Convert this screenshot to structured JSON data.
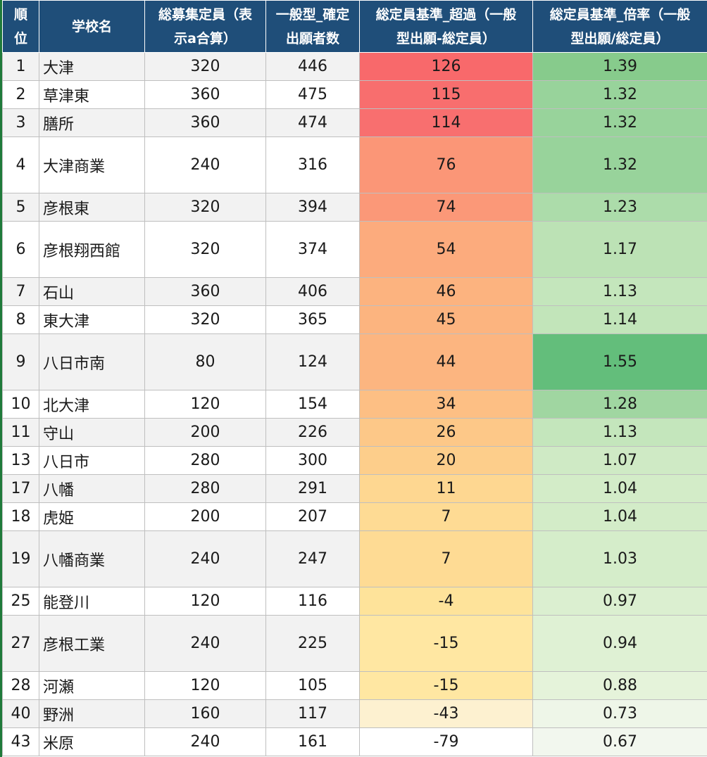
{
  "header": {
    "rank": [
      "順",
      "位"
    ],
    "school": "学校名",
    "capacity": [
      "総募集定員（表",
      "示a合算）"
    ],
    "applicants": [
      "一般型_確定",
      "出願者数"
    ],
    "excess": [
      "総定員基準_超過（一般",
      "型出願-総定員）"
    ],
    "ratio": [
      "総定員基準_倍率（一般",
      "型出願/総定員）"
    ]
  },
  "colors": {
    "header_bg": "#1f4e79",
    "excess_high": "#f8696b",
    "excess_mid": "#fcb581",
    "excess_low": "#ffeb9c",
    "excess_min": "#ffffff",
    "ratio_high": "#63be7b",
    "ratio_low": "#f2f7ee"
  },
  "rows": [
    {
      "rank": "1",
      "school": "大津",
      "capacity": "320",
      "applicants": "446",
      "excess": "126",
      "ratio": "1.39",
      "tall": false,
      "excess_bg": "#f8696b",
      "ratio_bg": "#87cb8c"
    },
    {
      "rank": "2",
      "school": "草津東",
      "capacity": "360",
      "applicants": "475",
      "excess": "115",
      "ratio": "1.32",
      "tall": false,
      "excess_bg": "#f86e6e",
      "ratio_bg": "#98d39b"
    },
    {
      "rank": "3",
      "school": "膳所",
      "capacity": "360",
      "applicants": "474",
      "excess": "114",
      "ratio": "1.32",
      "tall": false,
      "excess_bg": "#f86f6f",
      "ratio_bg": "#98d39b"
    },
    {
      "rank": "4",
      "school": "大津商業",
      "capacity": "240",
      "applicants": "316",
      "excess": "76",
      "ratio": "1.32",
      "tall": true,
      "excess_bg": "#fb9677",
      "ratio_bg": "#98d39b"
    },
    {
      "rank": "5",
      "school": "彦根東",
      "capacity": "320",
      "applicants": "394",
      "excess": "74",
      "ratio": "1.23",
      "tall": false,
      "excess_bg": "#fb9878",
      "ratio_bg": "#acdcaa"
    },
    {
      "rank": "6",
      "school": "彦根翔西館",
      "capacity": "320",
      "applicants": "374",
      "excess": "54",
      "ratio": "1.17",
      "tall": true,
      "excess_bg": "#fcab7d",
      "ratio_bg": "#bce2b5"
    },
    {
      "rank": "7",
      "school": "石山",
      "capacity": "360",
      "applicants": "406",
      "excess": "46",
      "ratio": "1.13",
      "tall": false,
      "excess_bg": "#fcb37f",
      "ratio_bg": "#c4e6bc"
    },
    {
      "rank": "8",
      "school": "東大津",
      "capacity": "320",
      "applicants": "365",
      "excess": "45",
      "ratio": "1.14",
      "tall": false,
      "excess_bg": "#fcb47f",
      "ratio_bg": "#c2e5ba"
    },
    {
      "rank": "9",
      "school": "八日市南",
      "capacity": "80",
      "applicants": "124",
      "excess": "44",
      "ratio": "1.55",
      "tall": true,
      "excess_bg": "#fcb580",
      "ratio_bg": "#63be7b"
    },
    {
      "rank": "10",
      "school": "北大津",
      "capacity": "120",
      "applicants": "154",
      "excess": "34",
      "ratio": "1.28",
      "tall": false,
      "excess_bg": "#fdbf84",
      "ratio_bg": "#a0d6a1"
    },
    {
      "rank": "11",
      "school": "守山",
      "capacity": "200",
      "applicants": "226",
      "excess": "26",
      "ratio": "1.13",
      "tall": false,
      "excess_bg": "#fdc888",
      "ratio_bg": "#c4e6bc"
    },
    {
      "rank": "13",
      "school": "八日市",
      "capacity": "280",
      "applicants": "300",
      "excess": "20",
      "ratio": "1.07",
      "tall": false,
      "excess_bg": "#fdce8b",
      "ratio_bg": "#cfeac5"
    },
    {
      "rank": "17",
      "school": "八幡",
      "capacity": "280",
      "applicants": "291",
      "excess": "11",
      "ratio": "1.04",
      "tall": false,
      "excess_bg": "#fed791",
      "ratio_bg": "#d3ecc8"
    },
    {
      "rank": "18",
      "school": "虎姫",
      "capacity": "200",
      "applicants": "207",
      "excess": "7",
      "ratio": "1.04",
      "tall": false,
      "excess_bg": "#fedb94",
      "ratio_bg": "#d3ecc8"
    },
    {
      "rank": "19",
      "school": "八幡商業",
      "capacity": "240",
      "applicants": "247",
      "excess": "7",
      "ratio": "1.03",
      "tall": true,
      "excess_bg": "#fedb94",
      "ratio_bg": "#d5edca"
    },
    {
      "rank": "25",
      "school": "能登川",
      "capacity": "120",
      "applicants": "116",
      "excess": "-4",
      "ratio": "0.97",
      "tall": false,
      "excess_bg": "#fee39a",
      "ratio_bg": "#dbefd0"
    },
    {
      "rank": "27",
      "school": "彦根工業",
      "capacity": "240",
      "applicants": "225",
      "excess": "-15",
      "ratio": "0.94",
      "tall": true,
      "excess_bg": "#ffe7a2",
      "ratio_bg": "#dff1d4"
    },
    {
      "rank": "28",
      "school": "河瀬",
      "capacity": "120",
      "applicants": "105",
      "excess": "-15",
      "ratio": "0.88",
      "tall": false,
      "excess_bg": "#ffe7a2",
      "ratio_bg": "#e5f3da"
    },
    {
      "rank": "40",
      "school": "野洲",
      "capacity": "160",
      "applicants": "117",
      "excess": "-43",
      "ratio": "0.73",
      "tall": false,
      "excess_bg": "#fdf1d0",
      "ratio_bg": "#eef6e8"
    },
    {
      "rank": "43",
      "school": "米原",
      "capacity": "240",
      "applicants": "161",
      "excess": "-79",
      "ratio": "0.67",
      "tall": false,
      "excess_bg": "#ffffff",
      "ratio_bg": "#f2f7ee"
    }
  ]
}
